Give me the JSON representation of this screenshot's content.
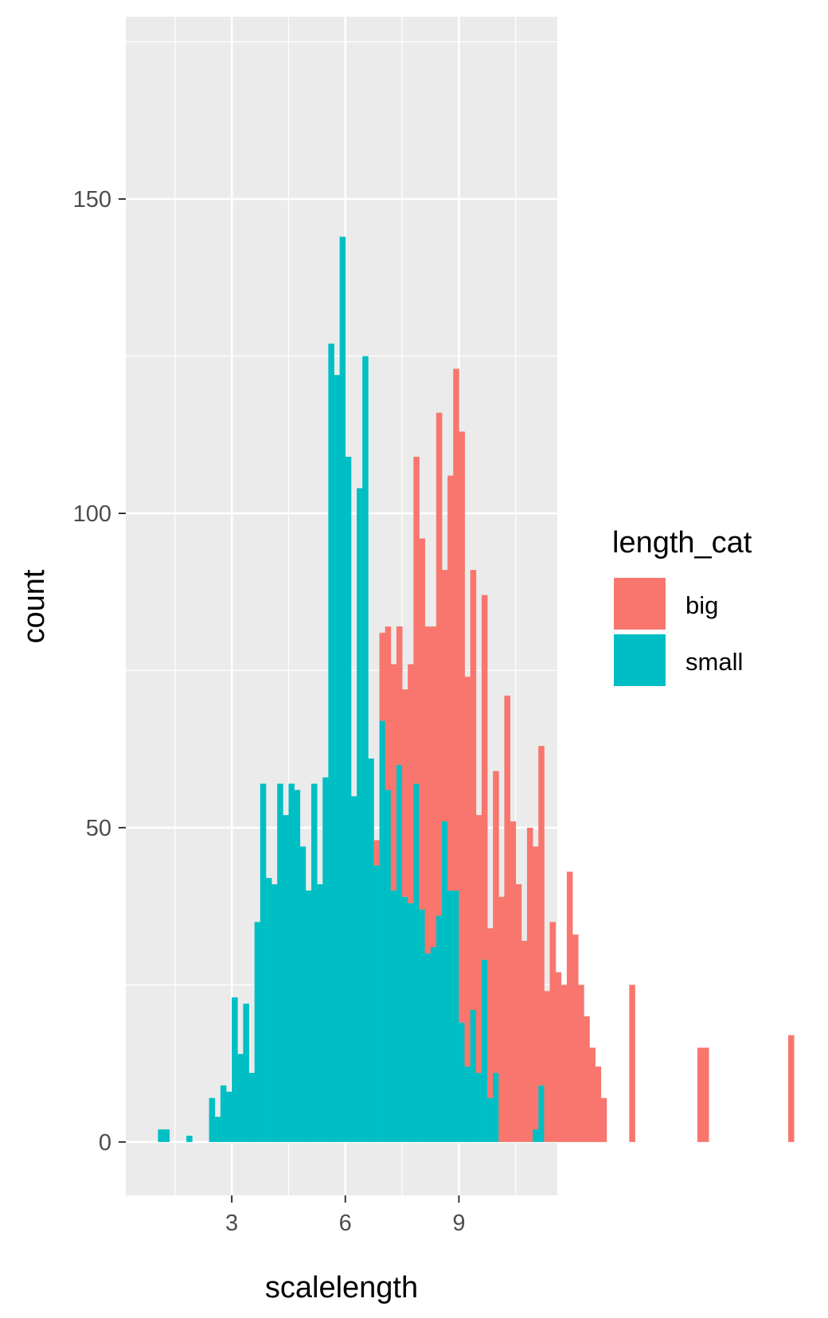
{
  "chart_data": {
    "type": "bar",
    "subtype": "histogram (stacked)",
    "title": "",
    "xlabel": "scalelength",
    "ylabel": "count",
    "xlim": [
      0.2,
      11.6
    ],
    "ylim": [
      -8.5,
      179
    ],
    "x_ticks": [
      3,
      6,
      9
    ],
    "x_tick_labels": [
      "3",
      "6",
      "9"
    ],
    "y_ticks": [
      0,
      50,
      100,
      150
    ],
    "y_tick_labels": [
      "0",
      "50",
      "100",
      "150"
    ],
    "grid": true,
    "panel_background": "#ebebeb",
    "legend": {
      "title": "length_cat",
      "position": "right",
      "entries": [
        "big",
        "small"
      ]
    },
    "bin_start": 0.75,
    "bin_width": 0.15,
    "series": [
      {
        "name": "big",
        "color": "#f8766d",
        "values": [
          0,
          0,
          0,
          0,
          0,
          0,
          0,
          0,
          0,
          0,
          0,
          0,
          0,
          0,
          0,
          0,
          0,
          0,
          0,
          0,
          0,
          0,
          0,
          0,
          0,
          0,
          0,
          0,
          0,
          0,
          0,
          0,
          0,
          0,
          0,
          0,
          0,
          0,
          0,
          0,
          4,
          14,
          26,
          36,
          22,
          33,
          38,
          52,
          59,
          52,
          51,
          80,
          40,
          66,
          83,
          94,
          62,
          70,
          41,
          58,
          27,
          48,
          39,
          71,
          51,
          41,
          32,
          50,
          45,
          54,
          24,
          35,
          27,
          25,
          43,
          33,
          25,
          20,
          15,
          12,
          7,
          0,
          0,
          0,
          0,
          25,
          0,
          0,
          0,
          0,
          0,
          0,
          0,
          0,
          0,
          0,
          0,
          15,
          15,
          0,
          0,
          0,
          0,
          0,
          0,
          0,
          0,
          0,
          0,
          0,
          0,
          0,
          0,
          17
        ]
      },
      {
        "name": "small",
        "color": "#00bfc4",
        "values": [
          0,
          0,
          2,
          2,
          0,
          0,
          0,
          1,
          0,
          0,
          0,
          7,
          4,
          9,
          8,
          23,
          14,
          22,
          11,
          35,
          57,
          42,
          41,
          57,
          52,
          57,
          56,
          47,
          40,
          57,
          41,
          58,
          127,
          122,
          144,
          109,
          55,
          104,
          125,
          61,
          44,
          67,
          56,
          40,
          60,
          39,
          38,
          57,
          37,
          30,
          31,
          36,
          51,
          40,
          40,
          19,
          12,
          21,
          11,
          29,
          7,
          11,
          0,
          0,
          0,
          0,
          0,
          0,
          2,
          9,
          0,
          0,
          0,
          0,
          0,
          0,
          0,
          0,
          0,
          0,
          0,
          0,
          0,
          0,
          0,
          0,
          0,
          0,
          0,
          0,
          0,
          0,
          0,
          0,
          0,
          0,
          0,
          0,
          0,
          0,
          0,
          0,
          0,
          0,
          0,
          0,
          0,
          0,
          0,
          0,
          0,
          0,
          0,
          0
        ]
      }
    ]
  }
}
